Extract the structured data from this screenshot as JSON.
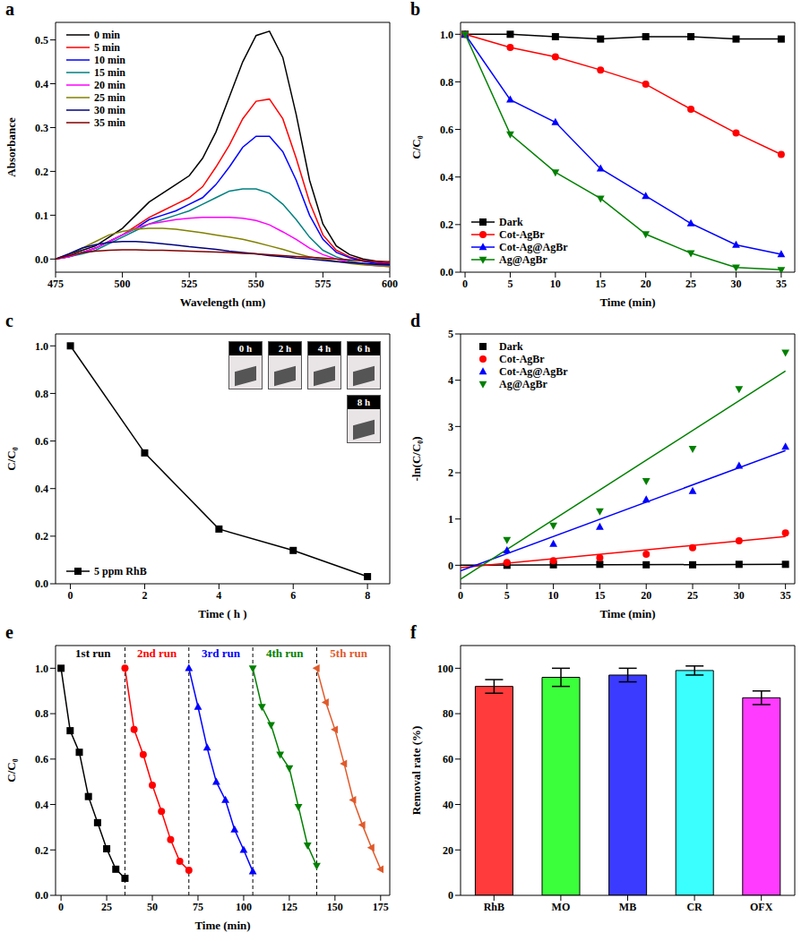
{
  "chart_data": [
    {
      "panel": "a",
      "type": "line",
      "x_label": "Wavelength (nm)",
      "y_label": "Absorbance",
      "x": [
        475,
        480,
        485,
        490,
        495,
        500,
        505,
        510,
        515,
        520,
        525,
        530,
        535,
        540,
        545,
        550,
        555,
        560,
        565,
        570,
        575,
        580,
        585,
        590,
        595,
        600
      ],
      "xlim": [
        475,
        600
      ],
      "xticks": [
        475,
        500,
        525,
        550,
        575,
        600
      ],
      "ylim": [
        -0.03,
        0.54
      ],
      "yticks": [
        {
          "value": 0,
          "label": "0.0"
        },
        {
          "value": 0.1,
          "label": "0.1"
        },
        {
          "value": 0.2,
          "label": "0.2"
        },
        {
          "value": 0.3,
          "label": "0.3"
        },
        {
          "value": 0.4,
          "label": "0.4"
        },
        {
          "value": 0.5,
          "label": "0.5"
        }
      ],
      "legend": "top-left",
      "series": [
        {
          "name": "0 min",
          "color": "#000000",
          "values": [
            0.0,
            0.01,
            0.02,
            0.03,
            0.05,
            0.07,
            0.1,
            0.13,
            0.15,
            0.17,
            0.19,
            0.23,
            0.29,
            0.37,
            0.45,
            0.51,
            0.52,
            0.46,
            0.33,
            0.18,
            0.08,
            0.03,
            0.01,
            0.0,
            -0.005,
            -0.01
          ]
        },
        {
          "name": "5 min",
          "color": "#ff0000",
          "values": [
            0.0,
            0.005,
            0.015,
            0.025,
            0.04,
            0.055,
            0.075,
            0.095,
            0.11,
            0.125,
            0.14,
            0.165,
            0.21,
            0.26,
            0.32,
            0.36,
            0.365,
            0.32,
            0.23,
            0.13,
            0.055,
            0.02,
            0.005,
            -0.003,
            -0.008,
            -0.01
          ]
        },
        {
          "name": "10 min",
          "color": "#0000ff",
          "values": [
            0.0,
            0.005,
            0.015,
            0.025,
            0.04,
            0.055,
            0.07,
            0.09,
            0.1,
            0.11,
            0.125,
            0.14,
            0.17,
            0.21,
            0.255,
            0.28,
            0.28,
            0.245,
            0.18,
            0.1,
            0.045,
            0.015,
            0.003,
            -0.005,
            -0.01,
            -0.012
          ]
        },
        {
          "name": "15 min",
          "color": "#008080",
          "values": [
            0.0,
            0.005,
            0.012,
            0.02,
            0.035,
            0.05,
            0.065,
            0.08,
            0.09,
            0.1,
            0.11,
            0.125,
            0.14,
            0.155,
            0.16,
            0.16,
            0.15,
            0.125,
            0.09,
            0.05,
            0.02,
            0.005,
            -0.005,
            -0.01,
            -0.013,
            -0.015
          ]
        },
        {
          "name": "20 min",
          "color": "#ff00ff",
          "values": [
            0.0,
            0.005,
            0.015,
            0.025,
            0.04,
            0.055,
            0.07,
            0.08,
            0.085,
            0.09,
            0.093,
            0.095,
            0.095,
            0.095,
            0.093,
            0.088,
            0.078,
            0.062,
            0.045,
            0.025,
            0.01,
            0.0,
            -0.008,
            -0.012,
            -0.015,
            -0.017
          ]
        },
        {
          "name": "25 min",
          "color": "#808000",
          "values": [
            0.0,
            0.01,
            0.025,
            0.04,
            0.055,
            0.063,
            0.068,
            0.07,
            0.07,
            0.068,
            0.064,
            0.06,
            0.055,
            0.05,
            0.045,
            0.038,
            0.03,
            0.022,
            0.013,
            0.005,
            0.0,
            -0.005,
            -0.01,
            -0.013,
            -0.015,
            -0.017
          ]
        },
        {
          "name": "30 min",
          "color": "#000080",
          "values": [
            0.0,
            0.012,
            0.025,
            0.033,
            0.038,
            0.04,
            0.04,
            0.038,
            0.035,
            0.032,
            0.028,
            0.025,
            0.022,
            0.018,
            0.015,
            0.012,
            0.008,
            0.005,
            0.002,
            0.0,
            -0.003,
            -0.006,
            -0.008,
            -0.01,
            -0.012,
            -0.013
          ]
        },
        {
          "name": "35 min",
          "color": "#800000",
          "values": [
            0.0,
            0.008,
            0.015,
            0.018,
            0.02,
            0.021,
            0.021,
            0.02,
            0.02,
            0.019,
            0.018,
            0.017,
            0.016,
            0.015,
            0.013,
            0.012,
            0.01,
            0.008,
            0.006,
            0.004,
            0.002,
            0.0,
            -0.002,
            -0.004,
            -0.005,
            -0.006
          ]
        }
      ]
    },
    {
      "panel": "b",
      "type": "line",
      "x_label": "Time (min)",
      "y_label": "C/C₀",
      "x": [
        0,
        5,
        10,
        15,
        20,
        25,
        30,
        35
      ],
      "xlim": [
        -0.5,
        36.5
      ],
      "xticks": [
        0,
        5,
        10,
        15,
        20,
        25,
        30,
        35
      ],
      "ylim": [
        0,
        1.05
      ],
      "yticks": [
        {
          "value": 0,
          "label": "0.0"
        },
        {
          "value": 0.2,
          "label": "0.2"
        },
        {
          "value": 0.4,
          "label": "0.4"
        },
        {
          "value": 0.6,
          "label": "0.6"
        },
        {
          "value": 0.8,
          "label": "0.8"
        },
        {
          "value": 1,
          "label": "1.0"
        }
      ],
      "legend": "bottom-left",
      "series": [
        {
          "name": "Dark",
          "color": "#000000",
          "marker": "square",
          "values": [
            1.0,
            1.0,
            0.99,
            0.98,
            0.99,
            0.99,
            0.98,
            0.98
          ]
        },
        {
          "name": "Cot-AgBr",
          "color": "#ff0000",
          "marker": "circle",
          "values": [
            1.0,
            0.945,
            0.905,
            0.85,
            0.79,
            0.685,
            0.585,
            0.495
          ]
        },
        {
          "name": "Cot-Ag@AgBr",
          "color": "#0000ff",
          "marker": "triangle",
          "values": [
            1.0,
            0.725,
            0.63,
            0.435,
            0.32,
            0.205,
            0.115,
            0.075
          ]
        },
        {
          "name": "Ag@AgBr",
          "color": "#008000",
          "marker": "triangle-down",
          "values": [
            1.0,
            0.58,
            0.42,
            0.31,
            0.16,
            0.08,
            0.02,
            0.01
          ]
        }
      ]
    },
    {
      "panel": "c",
      "type": "line",
      "x_label": "Time ( h )",
      "y_label": "C/C₀",
      "x": [
        0,
        2,
        4,
        6,
        8
      ],
      "xlim": [
        -0.4,
        8.6
      ],
      "xticks": [
        0,
        2,
        4,
        6,
        8
      ],
      "ylim": [
        0,
        1.05
      ],
      "yticks": [
        {
          "value": 0,
          "label": "0.0"
        },
        {
          "value": 0.2,
          "label": "0.2"
        },
        {
          "value": 0.4,
          "label": "0.4"
        },
        {
          "value": 0.6,
          "label": "0.6"
        },
        {
          "value": 0.8,
          "label": "0.8"
        },
        {
          "value": 1,
          "label": "1.0"
        }
      ],
      "legend": "bottom-left",
      "annotations": [
        "0 h",
        "2 h",
        "4 h",
        "6 h",
        "8 h"
      ],
      "series": [
        {
          "name": "5 ppm RhB",
          "color": "#000000",
          "marker": "square",
          "values": [
            1.0,
            0.55,
            0.23,
            0.14,
            0.03
          ]
        }
      ]
    },
    {
      "panel": "d",
      "type": "scatter",
      "x_label": "Time (min)",
      "y_label": "-ln(C/C₀)",
      "x": [
        5,
        10,
        15,
        20,
        25,
        30,
        35
      ],
      "xlim": [
        0,
        36
      ],
      "xticks": [
        0,
        5,
        10,
        15,
        20,
        25,
        30,
        35
      ],
      "ylim": [
        -0.4,
        5
      ],
      "yticks": [
        0,
        1,
        2,
        3,
        4,
        5
      ],
      "legend": "top-left",
      "series": [
        {
          "name": "Dark",
          "color": "#000000",
          "marker": "square",
          "values": [
            0.0,
            0.01,
            0.02,
            0.01,
            0.01,
            0.02,
            0.02
          ],
          "fit_x": [
            0,
            35
          ],
          "fit_values": [
            0.0,
            0.02
          ]
        },
        {
          "name": "Cot-AgBr",
          "color": "#ff0000",
          "marker": "circle",
          "values": [
            0.06,
            0.1,
            0.16,
            0.24,
            0.38,
            0.53,
            0.7
          ],
          "fit_x": [
            0,
            35
          ],
          "fit_values": [
            -0.05,
            0.62
          ]
        },
        {
          "name": "Cot-Ag@AgBr",
          "color": "#0000ff",
          "marker": "triangle",
          "values": [
            0.32,
            0.46,
            0.83,
            1.42,
            1.6,
            2.15,
            2.56
          ],
          "fit_x": [
            0,
            35
          ],
          "fit_values": [
            -0.12,
            2.48
          ]
        },
        {
          "name": "Ag@AgBr",
          "color": "#008000",
          "marker": "triangle-down",
          "values": [
            0.55,
            0.86,
            1.17,
            1.82,
            2.52,
            3.81,
            4.6
          ],
          "fit_x": [
            0,
            35
          ],
          "fit_values": [
            -0.3,
            4.2
          ]
        }
      ]
    },
    {
      "panel": "e",
      "type": "line",
      "x_label": "Time (min)",
      "y_label": "C/C₀",
      "xlim": [
        -3,
        180
      ],
      "xticks": [
        0,
        25,
        50,
        75,
        100,
        125,
        150,
        175
      ],
      "ylim": [
        0,
        1.1
      ],
      "yticks": [
        {
          "value": 0,
          "label": "0.0"
        },
        {
          "value": 0.2,
          "label": "0.2"
        },
        {
          "value": 0.4,
          "label": "0.4"
        },
        {
          "value": 0.6,
          "label": "0.6"
        },
        {
          "value": 0.8,
          "label": "0.8"
        },
        {
          "value": 1,
          "label": "1.0"
        }
      ],
      "legend": "inline",
      "separators": [
        35,
        70,
        105,
        140
      ],
      "series": [
        {
          "name": "1st run",
          "color": "#000000",
          "marker": "square",
          "x": [
            0,
            5,
            10,
            15,
            20,
            25,
            30,
            35
          ],
          "values": [
            1.0,
            0.725,
            0.63,
            0.435,
            0.32,
            0.205,
            0.115,
            0.075
          ]
        },
        {
          "name": "2nd run",
          "color": "#ff0000",
          "marker": "circle",
          "x": [
            35,
            40,
            45,
            50,
            55,
            60,
            65,
            70
          ],
          "values": [
            1.0,
            0.73,
            0.62,
            0.485,
            0.37,
            0.245,
            0.15,
            0.11
          ]
        },
        {
          "name": "3rd run",
          "color": "#0000ff",
          "marker": "triangle",
          "x": [
            70,
            75,
            80,
            85,
            90,
            95,
            100,
            105
          ],
          "values": [
            1.0,
            0.83,
            0.65,
            0.5,
            0.42,
            0.29,
            0.2,
            0.105
          ]
        },
        {
          "name": "4th run",
          "color": "#008000",
          "marker": "triangle-down",
          "x": [
            105,
            110,
            115,
            120,
            125,
            130,
            135,
            140
          ],
          "values": [
            1.0,
            0.83,
            0.75,
            0.62,
            0.56,
            0.39,
            0.22,
            0.13
          ]
        },
        {
          "name": "5th run",
          "color": "#e05a2b",
          "marker": "triangle-left",
          "x": [
            140,
            145,
            150,
            155,
            160,
            165,
            170,
            175
          ],
          "values": [
            1.0,
            0.85,
            0.73,
            0.58,
            0.42,
            0.31,
            0.21,
            0.115
          ]
        }
      ]
    },
    {
      "panel": "f",
      "type": "bar",
      "y_label": "Removal rate (%)",
      "categories": [
        "RhB",
        "MO",
        "MB",
        "CR",
        "OFX"
      ],
      "values": [
        92,
        96,
        97,
        99,
        87
      ],
      "errors": [
        3,
        4,
        3,
        2,
        3
      ],
      "colors": [
        "#ff3b3b",
        "#3bff3b",
        "#3b3bff",
        "#3bffff",
        "#ff3bff"
      ],
      "ylim": [
        0,
        110
      ],
      "yticks": [
        0,
        20,
        40,
        60,
        80,
        100
      ]
    }
  ]
}
